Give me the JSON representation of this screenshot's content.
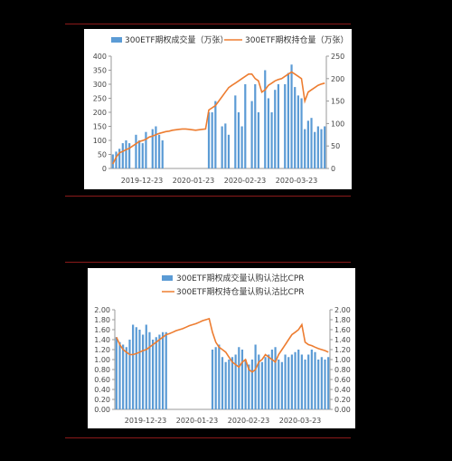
{
  "chart_data": [
    {
      "type": "bar+line",
      "legend_position": "top",
      "bar_series": {
        "name": "300ETF期权成交量（万张）",
        "color": "#5b9bd5",
        "values": [
          50,
          60,
          70,
          90,
          100,
          90,
          0,
          120,
          100,
          90,
          130,
          0,
          140,
          150,
          120,
          100,
          0,
          0,
          0,
          0,
          0,
          0,
          0,
          0,
          0,
          0,
          0,
          0,
          0,
          200,
          200,
          240,
          0,
          150,
          160,
          120,
          0,
          260,
          200,
          150,
          300,
          0,
          240,
          300,
          200,
          0,
          350,
          250,
          200,
          280,
          300,
          0,
          300,
          340,
          370,
          290,
          260,
          250,
          140,
          170,
          180,
          130,
          150,
          140,
          150
        ]
      },
      "line_series": {
        "name": "300ETF期权持仓量（万张）",
        "color": "#ed7d31",
        "values": [
          10,
          25,
          35,
          38,
          42,
          45,
          50,
          55,
          60,
          62,
          65,
          70,
          72,
          75,
          78,
          80,
          82,
          83,
          85,
          86,
          87,
          88,
          88,
          87,
          86,
          85,
          86,
          87,
          88,
          130,
          135,
          140,
          150,
          160,
          170,
          180,
          185,
          190,
          195,
          200,
          205,
          210,
          210,
          200,
          195,
          170,
          175,
          185,
          190,
          195,
          198,
          200,
          205,
          210,
          215,
          210,
          205,
          200,
          150,
          170,
          175,
          180,
          185,
          188,
          190
        ]
      },
      "x_tick_labels": [
        "2019-12-23",
        "2020-01-23",
        "2020-02-23",
        "2020-03-23"
      ],
      "y_left": {
        "min": 0,
        "max": 400,
        "ticks": [
          "0",
          "50",
          "100",
          "150",
          "200",
          "250",
          "300",
          "350",
          "400"
        ]
      },
      "y_right": {
        "min": 0,
        "max": 250,
        "ticks": [
          "0",
          "50",
          "100",
          "150",
          "200",
          "250"
        ]
      },
      "grid": false
    },
    {
      "type": "bar+line",
      "legend_position": "top",
      "bar_series": {
        "name": "300ETF期权成交量认购认沽比CPR",
        "color": "#5b9bd5",
        "values": [
          1.45,
          1.35,
          1.3,
          1.25,
          1.4,
          1.7,
          1.65,
          1.6,
          1.5,
          1.7,
          1.55,
          1.4,
          1.45,
          1.5,
          1.55,
          1.55,
          0,
          0,
          0,
          0,
          0,
          0,
          0,
          0,
          0,
          0,
          0,
          0,
          0,
          1.2,
          1.25,
          1.3,
          1.05,
          0.95,
          1.0,
          1.05,
          1.1,
          1.25,
          1.2,
          1.0,
          0.9,
          1.0,
          1.3,
          1.1,
          0.95,
          1.05,
          1.1,
          1.2,
          1.25,
          1.0,
          0.95,
          1.1,
          1.05,
          1.1,
          1.15,
          1.2,
          1.1,
          1.0,
          1.1,
          1.2,
          1.15,
          1.0,
          1.05,
          1.0,
          1.05
        ]
      },
      "line_series": {
        "name": "300ETF期权持仓量认购认沽比CPR",
        "color": "#ed7d31",
        "values": [
          1.45,
          1.3,
          1.2,
          1.15,
          1.1,
          1.1,
          1.12,
          1.15,
          1.18,
          1.2,
          1.25,
          1.3,
          1.35,
          1.4,
          1.45,
          1.5,
          1.52,
          1.55,
          1.58,
          1.6,
          1.62,
          1.65,
          1.68,
          1.7,
          1.72,
          1.75,
          1.78,
          1.8,
          1.82,
          1.55,
          1.35,
          1.25,
          1.2,
          1.15,
          1.05,
          0.95,
          0.9,
          0.85,
          0.95,
          1.0,
          0.8,
          0.75,
          0.8,
          0.95,
          1.0,
          1.1,
          1.05,
          1.0,
          0.95,
          1.1,
          1.2,
          1.3,
          1.4,
          1.5,
          1.55,
          1.6,
          1.7,
          1.35,
          1.3,
          1.28,
          1.25,
          1.22,
          1.2,
          1.18,
          1.15
        ]
      },
      "x_tick_labels": [
        "2019-12-23",
        "2020-01-23",
        "2020-02-23",
        "2020-03-23"
      ],
      "y_left": {
        "min": 0,
        "max": 2.0,
        "ticks": [
          "0.00",
          "0.20",
          "0.40",
          "0.60",
          "0.80",
          "1.00",
          "1.20",
          "1.40",
          "1.60",
          "1.80",
          "2.00"
        ]
      },
      "y_right": {
        "min": 0,
        "max": 2.0,
        "ticks": [
          "0.00",
          "0.20",
          "0.40",
          "0.60",
          "0.80",
          "1.00",
          "1.20",
          "1.40",
          "1.60",
          "1.80",
          "2.00"
        ]
      },
      "grid": false
    }
  ]
}
